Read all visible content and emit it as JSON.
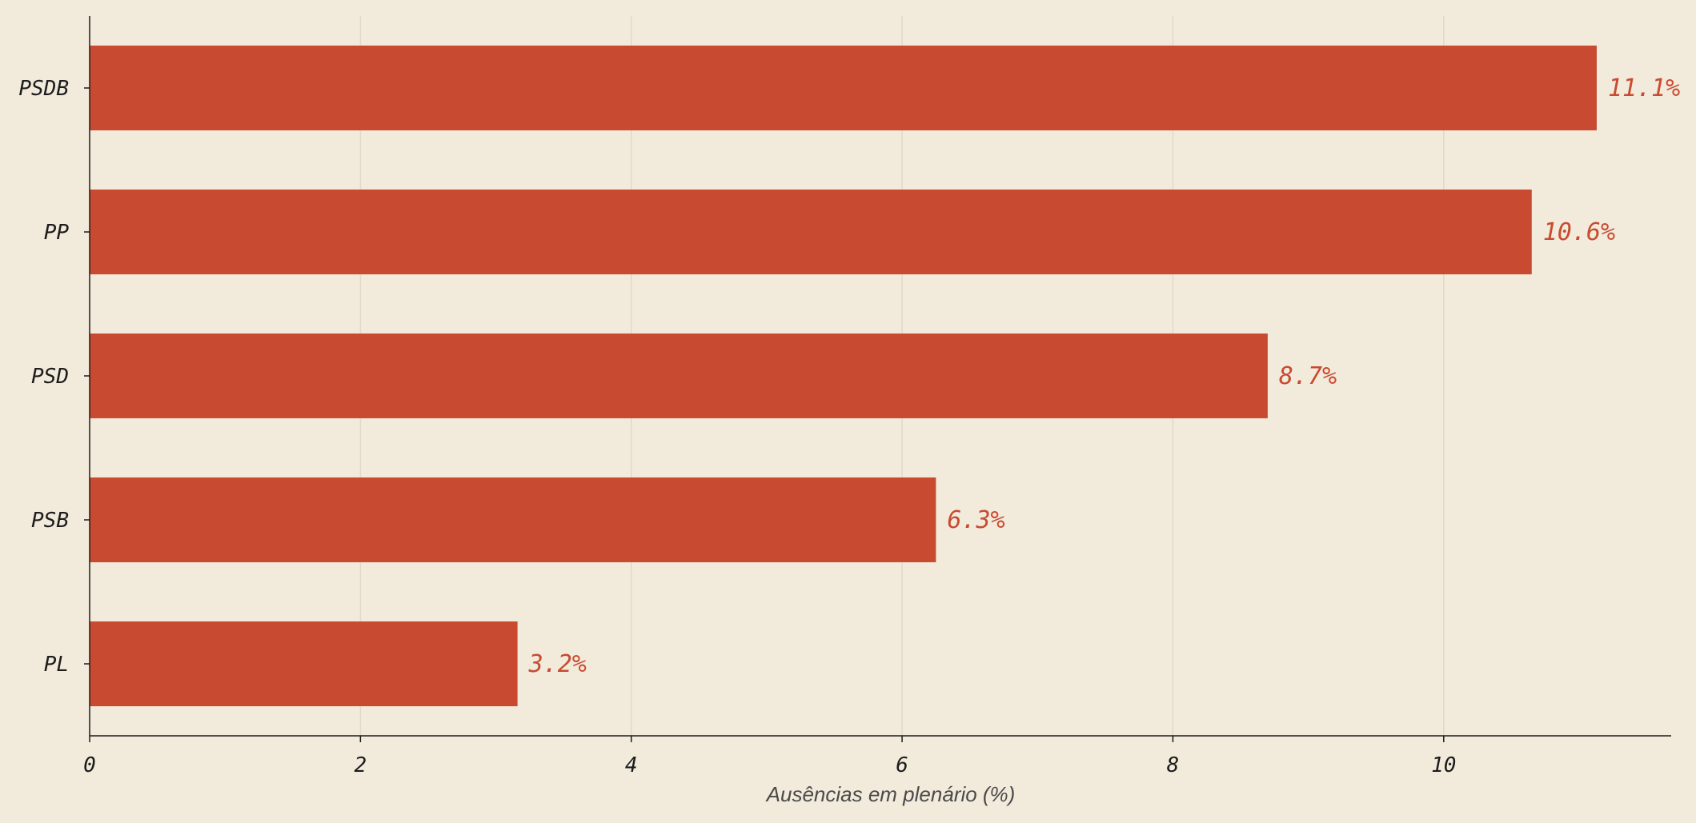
{
  "chart_data": {
    "type": "bar",
    "orientation": "horizontal",
    "categories": [
      "PSDB",
      "PP",
      "PSD",
      "PSB",
      "PL"
    ],
    "values": [
      11.13,
      10.65,
      8.7,
      6.25,
      3.16
    ],
    "value_labels": [
      "11.1%",
      "10.6%",
      "8.7%",
      "6.3%",
      "3.2%"
    ],
    "title": "",
    "xlabel": "Ausências em plenário (%)",
    "ylabel": "",
    "xlim": [
      0,
      11.68
    ],
    "xticks": [
      0,
      2,
      4,
      6,
      8,
      10
    ],
    "xtick_labels": [
      "0",
      "2",
      "4",
      "6",
      "8",
      "10"
    ],
    "grid": "vertical",
    "legend": "none",
    "colors": {
      "bar": "#c84b31",
      "label": "#c84b31",
      "background": "#f2eadb",
      "grid": "#e2d9c8",
      "axis": "#1c1c1c"
    }
  }
}
